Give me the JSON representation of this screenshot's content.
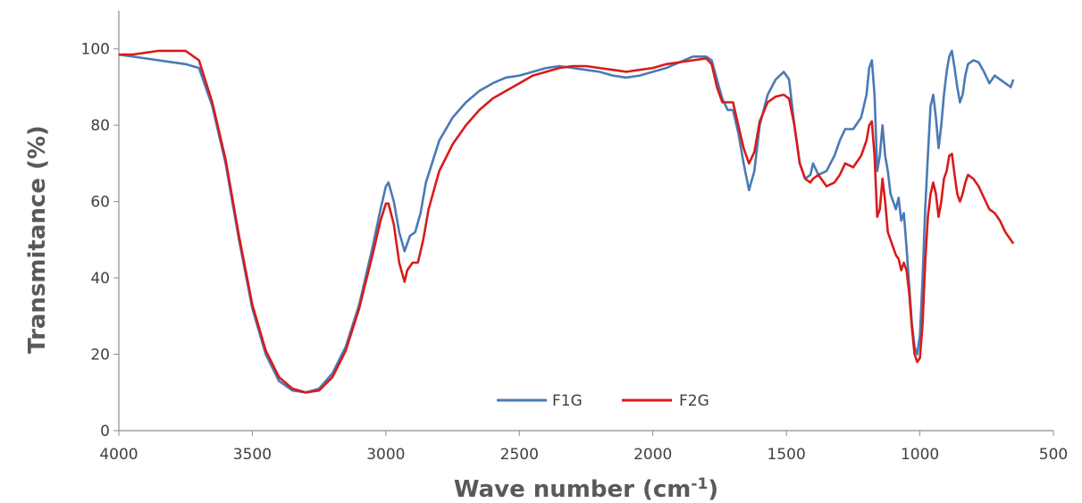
{
  "chart_data": {
    "type": "line",
    "title": "",
    "xlabel": "Wave  number (cm",
    "xlabel_sup": "-1",
    "xlabel_close": ")",
    "ylabel": "Transmitance (%)",
    "xlim": [
      4000,
      500
    ],
    "ylim": [
      0,
      110
    ],
    "x_reversed": true,
    "grid": false,
    "legend_position": "bottom-center",
    "xticks": [
      4000,
      3500,
      3000,
      2500,
      2000,
      1500,
      1000,
      500
    ],
    "yticks": [
      0,
      20,
      40,
      60,
      80,
      100
    ],
    "series": [
      {
        "name": "F1G",
        "color": "#4a7ab5",
        "points": [
          [
            4000,
            98.5
          ],
          [
            3900,
            97.5
          ],
          [
            3800,
            96.5
          ],
          [
            3750,
            96
          ],
          [
            3700,
            95
          ],
          [
            3650,
            85
          ],
          [
            3600,
            70
          ],
          [
            3550,
            50
          ],
          [
            3500,
            32
          ],
          [
            3450,
            20
          ],
          [
            3400,
            13
          ],
          [
            3350,
            10.5
          ],
          [
            3300,
            10
          ],
          [
            3250,
            11
          ],
          [
            3200,
            15
          ],
          [
            3150,
            22
          ],
          [
            3100,
            33
          ],
          [
            3050,
            48
          ],
          [
            3020,
            58
          ],
          [
            3000,
            64
          ],
          [
            2990,
            65
          ],
          [
            2970,
            60
          ],
          [
            2950,
            52
          ],
          [
            2930,
            47
          ],
          [
            2910,
            51
          ],
          [
            2890,
            52
          ],
          [
            2870,
            57
          ],
          [
            2850,
            65
          ],
          [
            2800,
            76
          ],
          [
            2750,
            82
          ],
          [
            2700,
            86
          ],
          [
            2650,
            89
          ],
          [
            2600,
            91
          ],
          [
            2550,
            92.5
          ],
          [
            2500,
            93
          ],
          [
            2450,
            94
          ],
          [
            2400,
            95
          ],
          [
            2350,
            95.5
          ],
          [
            2300,
            95
          ],
          [
            2250,
            94.5
          ],
          [
            2200,
            94
          ],
          [
            2150,
            93
          ],
          [
            2100,
            92.5
          ],
          [
            2050,
            93
          ],
          [
            2000,
            94
          ],
          [
            1950,
            95
          ],
          [
            1900,
            96.5
          ],
          [
            1850,
            98
          ],
          [
            1800,
            98
          ],
          [
            1780,
            97
          ],
          [
            1760,
            92
          ],
          [
            1740,
            87
          ],
          [
            1720,
            84
          ],
          [
            1700,
            84
          ],
          [
            1680,
            78
          ],
          [
            1660,
            70
          ],
          [
            1640,
            63
          ],
          [
            1620,
            68
          ],
          [
            1600,
            80
          ],
          [
            1570,
            88
          ],
          [
            1540,
            92
          ],
          [
            1510,
            94
          ],
          [
            1490,
            92
          ],
          [
            1470,
            80
          ],
          [
            1450,
            70
          ],
          [
            1430,
            66
          ],
          [
            1410,
            67
          ],
          [
            1400,
            70
          ],
          [
            1380,
            67
          ],
          [
            1350,
            68
          ],
          [
            1320,
            72
          ],
          [
            1300,
            76
          ],
          [
            1280,
            79
          ],
          [
            1250,
            79
          ],
          [
            1220,
            82
          ],
          [
            1200,
            88
          ],
          [
            1190,
            95
          ],
          [
            1180,
            97
          ],
          [
            1170,
            88
          ],
          [
            1160,
            68
          ],
          [
            1150,
            72
          ],
          [
            1140,
            80
          ],
          [
            1130,
            72
          ],
          [
            1120,
            68
          ],
          [
            1110,
            62
          ],
          [
            1100,
            60
          ],
          [
            1090,
            58
          ],
          [
            1080,
            61
          ],
          [
            1070,
            55
          ],
          [
            1060,
            57
          ],
          [
            1050,
            48
          ],
          [
            1040,
            38
          ],
          [
            1030,
            28
          ],
          [
            1020,
            22
          ],
          [
            1010,
            20
          ],
          [
            1000,
            25
          ],
          [
            990,
            40
          ],
          [
            980,
            58
          ],
          [
            970,
            72
          ],
          [
            960,
            85
          ],
          [
            950,
            88
          ],
          [
            940,
            82
          ],
          [
            930,
            74
          ],
          [
            920,
            80
          ],
          [
            910,
            88
          ],
          [
            900,
            94
          ],
          [
            890,
            98
          ],
          [
            880,
            99.5
          ],
          [
            870,
            95
          ],
          [
            860,
            90
          ],
          [
            850,
            86
          ],
          [
            840,
            88
          ],
          [
            830,
            93
          ],
          [
            820,
            96
          ],
          [
            800,
            97
          ],
          [
            780,
            96.5
          ],
          [
            760,
            94
          ],
          [
            740,
            91
          ],
          [
            720,
            93
          ],
          [
            700,
            92
          ],
          [
            680,
            91
          ],
          [
            660,
            90
          ],
          [
            650,
            92
          ]
        ]
      },
      {
        "name": "F2G",
        "color": "#d81b1b",
        "points": [
          [
            4000,
            98.5
          ],
          [
            3950,
            98.5
          ],
          [
            3900,
            99
          ],
          [
            3850,
            99.5
          ],
          [
            3800,
            99.5
          ],
          [
            3750,
            99.5
          ],
          [
            3700,
            97
          ],
          [
            3650,
            86
          ],
          [
            3600,
            71
          ],
          [
            3550,
            51
          ],
          [
            3500,
            33
          ],
          [
            3450,
            21
          ],
          [
            3400,
            14
          ],
          [
            3350,
            11
          ],
          [
            3300,
            10
          ],
          [
            3250,
            10.5
          ],
          [
            3200,
            14
          ],
          [
            3150,
            21
          ],
          [
            3100,
            32
          ],
          [
            3050,
            46
          ],
          [
            3020,
            55
          ],
          [
            3000,
            59.5
          ],
          [
            2990,
            59.5
          ],
          [
            2970,
            54
          ],
          [
            2950,
            44
          ],
          [
            2930,
            39
          ],
          [
            2920,
            42
          ],
          [
            2900,
            44
          ],
          [
            2880,
            44
          ],
          [
            2860,
            50
          ],
          [
            2840,
            58
          ],
          [
            2800,
            68
          ],
          [
            2750,
            75
          ],
          [
            2700,
            80
          ],
          [
            2650,
            84
          ],
          [
            2600,
            87
          ],
          [
            2550,
            89
          ],
          [
            2500,
            91
          ],
          [
            2450,
            93
          ],
          [
            2400,
            94
          ],
          [
            2350,
            95
          ],
          [
            2300,
            95.5
          ],
          [
            2250,
            95.5
          ],
          [
            2200,
            95
          ],
          [
            2150,
            94.5
          ],
          [
            2100,
            94
          ],
          [
            2050,
            94.5
          ],
          [
            2000,
            95
          ],
          [
            1950,
            96
          ],
          [
            1900,
            96.5
          ],
          [
            1850,
            97
          ],
          [
            1800,
            97.5
          ],
          [
            1780,
            96
          ],
          [
            1760,
            90
          ],
          [
            1740,
            86
          ],
          [
            1720,
            86
          ],
          [
            1700,
            86
          ],
          [
            1680,
            80
          ],
          [
            1660,
            74
          ],
          [
            1640,
            70
          ],
          [
            1620,
            73
          ],
          [
            1600,
            81
          ],
          [
            1570,
            86
          ],
          [
            1540,
            87.5
          ],
          [
            1510,
            88
          ],
          [
            1490,
            87
          ],
          [
            1470,
            80
          ],
          [
            1450,
            70
          ],
          [
            1430,
            66
          ],
          [
            1410,
            65
          ],
          [
            1400,
            66
          ],
          [
            1380,
            67
          ],
          [
            1350,
            64
          ],
          [
            1320,
            65
          ],
          [
            1300,
            67
          ],
          [
            1280,
            70
          ],
          [
            1250,
            69
          ],
          [
            1220,
            72
          ],
          [
            1200,
            76
          ],
          [
            1190,
            80
          ],
          [
            1180,
            81
          ],
          [
            1170,
            72
          ],
          [
            1160,
            56
          ],
          [
            1150,
            58
          ],
          [
            1140,
            66
          ],
          [
            1130,
            60
          ],
          [
            1120,
            52
          ],
          [
            1110,
            50
          ],
          [
            1100,
            48
          ],
          [
            1090,
            46
          ],
          [
            1080,
            45
          ],
          [
            1070,
            42
          ],
          [
            1060,
            44
          ],
          [
            1050,
            42
          ],
          [
            1040,
            36
          ],
          [
            1030,
            27
          ],
          [
            1020,
            20
          ],
          [
            1010,
            18
          ],
          [
            1000,
            19
          ],
          [
            990,
            28
          ],
          [
            980,
            44
          ],
          [
            970,
            56
          ],
          [
            960,
            62
          ],
          [
            950,
            65
          ],
          [
            940,
            62
          ],
          [
            930,
            56
          ],
          [
            920,
            60
          ],
          [
            910,
            66
          ],
          [
            900,
            68
          ],
          [
            890,
            72
          ],
          [
            880,
            72.5
          ],
          [
            870,
            67
          ],
          [
            860,
            62
          ],
          [
            850,
            60
          ],
          [
            840,
            62
          ],
          [
            830,
            65
          ],
          [
            820,
            67
          ],
          [
            800,
            66
          ],
          [
            780,
            64
          ],
          [
            760,
            61
          ],
          [
            740,
            58
          ],
          [
            720,
            57
          ],
          [
            700,
            55
          ],
          [
            680,
            52
          ],
          [
            660,
            50
          ],
          [
            650,
            49
          ]
        ]
      }
    ]
  },
  "colors": {
    "axis": "#8c8c8c",
    "f1g": "#4a7ab5",
    "f2g": "#d81b1b"
  }
}
